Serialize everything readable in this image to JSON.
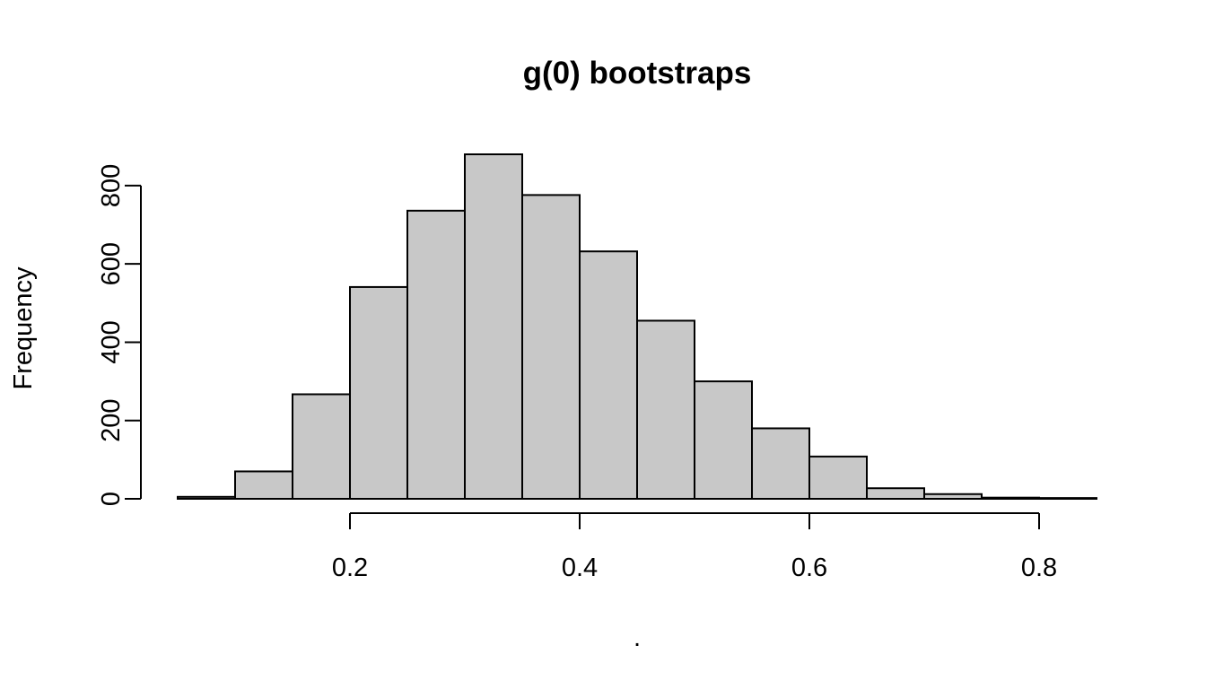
{
  "chart_data": {
    "type": "bar",
    "subtype": "histogram",
    "title": "g(0) bootstraps",
    "xlabel": ".",
    "ylabel": "Frequency",
    "bins": [
      {
        "x0": 0.05,
        "x1": 0.1,
        "count": 5
      },
      {
        "x0": 0.1,
        "x1": 0.15,
        "count": 70
      },
      {
        "x0": 0.15,
        "x1": 0.2,
        "count": 267
      },
      {
        "x0": 0.2,
        "x1": 0.25,
        "count": 541
      },
      {
        "x0": 0.25,
        "x1": 0.3,
        "count": 736
      },
      {
        "x0": 0.3,
        "x1": 0.35,
        "count": 880
      },
      {
        "x0": 0.35,
        "x1": 0.4,
        "count": 776
      },
      {
        "x0": 0.4,
        "x1": 0.45,
        "count": 632
      },
      {
        "x0": 0.45,
        "x1": 0.5,
        "count": 455
      },
      {
        "x0": 0.5,
        "x1": 0.55,
        "count": 300
      },
      {
        "x0": 0.55,
        "x1": 0.6,
        "count": 180
      },
      {
        "x0": 0.6,
        "x1": 0.65,
        "count": 108
      },
      {
        "x0": 0.65,
        "x1": 0.7,
        "count": 27
      },
      {
        "x0": 0.7,
        "x1": 0.75,
        "count": 12
      },
      {
        "x0": 0.75,
        "x1": 0.8,
        "count": 3
      },
      {
        "x0": 0.8,
        "x1": 0.85,
        "count": 2
      }
    ],
    "xticks": [
      0.2,
      0.4,
      0.6,
      0.8
    ],
    "xtick_labels": [
      "0.2",
      "0.4",
      "0.6",
      "0.8"
    ],
    "yticks": [
      0,
      200,
      400,
      600,
      800
    ],
    "ytick_labels": [
      "0",
      "200",
      "400",
      "600",
      "800"
    ],
    "xlim": [
      0.05,
      0.85
    ],
    "ylim": [
      0,
      880
    ],
    "bar_fill": "#c8c8c8",
    "bar_stroke": "#000000",
    "grid": false,
    "legend": false
  }
}
